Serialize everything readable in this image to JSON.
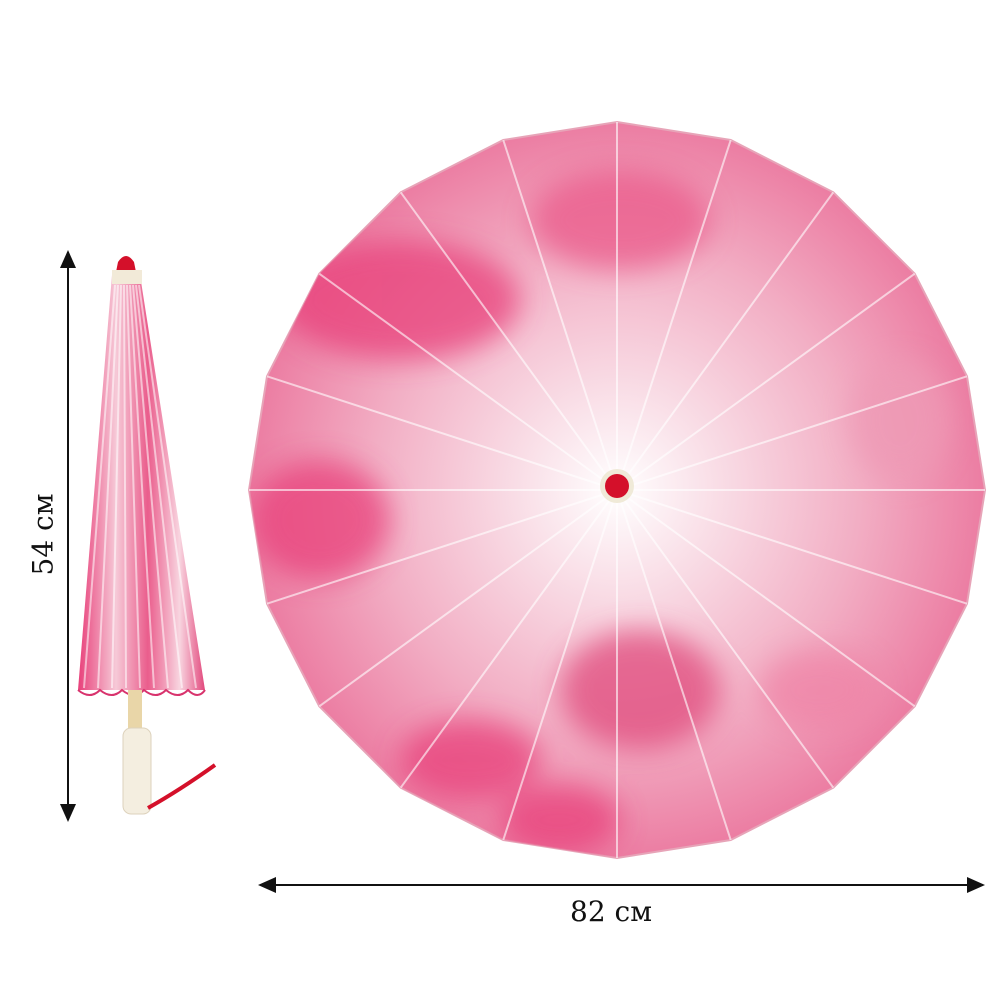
{
  "dimensions": {
    "height_label": "54 см",
    "width_label": "82 см"
  },
  "colors": {
    "canopy_pink": "#e8407a",
    "canopy_light": "#f7e6ec",
    "tip_red": "#d4102a",
    "handle": "#f2ead8",
    "arrow": "#111111"
  }
}
